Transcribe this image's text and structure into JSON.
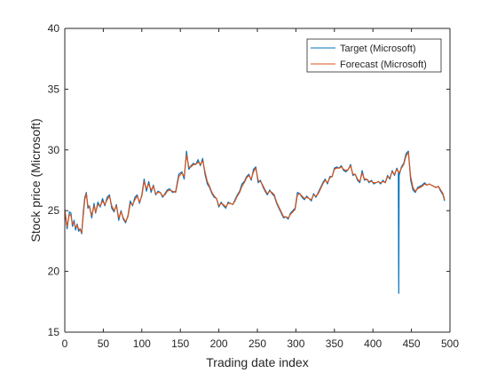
{
  "chart_data": {
    "type": "line",
    "title": "",
    "xlabel": "Trading date index",
    "ylabel": "Stock price (Microsoft)",
    "xlim": [
      0,
      500
    ],
    "ylim": [
      15,
      40
    ],
    "xticks": [
      0,
      50,
      100,
      150,
      200,
      250,
      300,
      350,
      400,
      450,
      500
    ],
    "yticks": [
      15,
      20,
      25,
      30,
      35,
      40
    ],
    "grid": false,
    "legend_position": "top-right",
    "series": [
      {
        "name": "Target (Microsoft)",
        "color": "#0072bd",
        "x": [
          0,
          3,
          6,
          8,
          10,
          12,
          14,
          16,
          18,
          20,
          22,
          24,
          26,
          28,
          30,
          32,
          35,
          38,
          40,
          43,
          46,
          49,
          52,
          55,
          58,
          61,
          64,
          67,
          70,
          73,
          76,
          79,
          82,
          85,
          88,
          91,
          94,
          97,
          100,
          103,
          106,
          109,
          112,
          115,
          118,
          121,
          124,
          127,
          130,
          133,
          136,
          140,
          144,
          148,
          152,
          155,
          158,
          161,
          164,
          167,
          170,
          173,
          176,
          179,
          182,
          185,
          188,
          191,
          194,
          197,
          200,
          203,
          206,
          209,
          212,
          215,
          218,
          221,
          224,
          227,
          230,
          233,
          236,
          239,
          242,
          245,
          248,
          251,
          254,
          257,
          260,
          263,
          266,
          269,
          272,
          275,
          278,
          281,
          284,
          287,
          290,
          293,
          296,
          299,
          302,
          305,
          308,
          311,
          314,
          317,
          320,
          323,
          326,
          329,
          332,
          335,
          338,
          341,
          344,
          347,
          350,
          353,
          356,
          359,
          362,
          365,
          368,
          371,
          374,
          377,
          380,
          383,
          386,
          389,
          392,
          395,
          398,
          401,
          404,
          407,
          410,
          413,
          416,
          419,
          422,
          425,
          428,
          431,
          433,
          433.5,
          434,
          437,
          440,
          443,
          446,
          449,
          452,
          455,
          458,
          461,
          464,
          467,
          470,
          473,
          476,
          479,
          482,
          485,
          488,
          491,
          493
        ],
        "y": [
          25.0,
          23.5,
          24.9,
          24.8,
          23.7,
          24.2,
          23.4,
          23.9,
          23.3,
          23.5,
          23.1,
          24.9,
          26.1,
          26.5,
          25.2,
          25.4,
          24.4,
          25.6,
          24.8,
          25.7,
          25.3,
          26.0,
          25.4,
          26.1,
          26.3,
          25.2,
          24.9,
          25.5,
          24.2,
          25.0,
          24.3,
          24.0,
          24.6,
          25.8,
          25.4,
          26.1,
          26.3,
          25.6,
          26.3,
          27.6,
          26.6,
          27.4,
          26.5,
          27.1,
          26.3,
          26.6,
          26.5,
          26.1,
          26.4,
          26.7,
          26.8,
          26.5,
          26.6,
          28.0,
          28.2,
          27.6,
          29.9,
          28.4,
          28.7,
          28.9,
          28.8,
          29.2,
          28.7,
          29.3,
          28.0,
          27.2,
          26.9,
          26.4,
          26.1,
          26.0,
          25.3,
          25.7,
          25.4,
          25.2,
          25.7,
          25.6,
          25.5,
          25.9,
          26.3,
          26.6,
          27.2,
          27.4,
          27.8,
          28.0,
          27.5,
          28.4,
          28.6,
          27.3,
          27.5,
          27.0,
          26.6,
          26.3,
          26.7,
          26.4,
          26.2,
          25.6,
          25.2,
          24.8,
          24.4,
          24.5,
          24.3,
          24.8,
          25.0,
          25.2,
          26.5,
          26.4,
          26.1,
          25.9,
          26.2,
          26.0,
          25.8,
          26.4,
          26.1,
          26.5,
          26.9,
          27.3,
          27.6,
          27.2,
          27.8,
          27.8,
          28.5,
          28.6,
          28.5,
          28.7,
          28.3,
          28.2,
          28.4,
          28.8,
          27.9,
          28.0,
          27.5,
          27.3,
          28.3,
          27.5,
          27.6,
          27.3,
          27.5,
          27.2,
          27.3,
          27.4,
          27.2,
          27.5,
          27.3,
          27.9,
          27.6,
          28.3,
          27.9,
          28.5,
          28.2,
          18.2,
          27.9,
          28.6,
          28.9,
          29.7,
          29.9,
          27.5,
          26.7,
          26.5,
          26.9,
          27.0,
          27.1,
          27.3,
          27.1,
          27.2,
          27.1,
          27.0,
          26.9,
          27.0,
          26.6,
          26.3,
          25.8
        ]
      },
      {
        "name": "Forecast (Microsoft)",
        "color": "#d95319",
        "x": [
          0,
          3,
          6,
          8,
          10,
          12,
          14,
          16,
          18,
          20,
          22,
          24,
          26,
          28,
          30,
          32,
          35,
          38,
          40,
          43,
          46,
          49,
          52,
          55,
          58,
          61,
          64,
          67,
          70,
          73,
          76,
          79,
          82,
          85,
          88,
          91,
          94,
          97,
          100,
          103,
          106,
          109,
          112,
          115,
          118,
          121,
          124,
          127,
          130,
          133,
          136,
          140,
          144,
          148,
          152,
          155,
          158,
          161,
          164,
          167,
          170,
          173,
          176,
          179,
          182,
          185,
          188,
          191,
          194,
          197,
          200,
          203,
          206,
          209,
          212,
          215,
          218,
          221,
          224,
          227,
          230,
          233,
          236,
          239,
          242,
          245,
          248,
          251,
          254,
          257,
          260,
          263,
          266,
          269,
          272,
          275,
          278,
          281,
          284,
          287,
          290,
          293,
          296,
          299,
          302,
          305,
          308,
          311,
          314,
          317,
          320,
          323,
          326,
          329,
          332,
          335,
          338,
          341,
          344,
          347,
          350,
          353,
          356,
          359,
          362,
          365,
          368,
          371,
          374,
          377,
          380,
          383,
          386,
          389,
          392,
          395,
          398,
          401,
          404,
          407,
          410,
          413,
          416,
          419,
          422,
          425,
          428,
          431,
          434,
          437,
          440,
          443,
          446,
          449,
          452,
          455,
          458,
          461,
          464,
          467,
          470,
          473,
          476,
          479,
          482,
          485,
          488,
          491,
          493
        ],
        "y": [
          25.1,
          23.7,
          24.7,
          24.6,
          23.9,
          24.0,
          23.6,
          23.8,
          23.5,
          23.4,
          23.2,
          24.6,
          25.9,
          26.4,
          25.4,
          25.3,
          24.6,
          25.4,
          24.9,
          25.5,
          25.4,
          25.8,
          25.5,
          25.9,
          26.2,
          25.4,
          25.0,
          25.4,
          24.4,
          24.9,
          24.4,
          24.1,
          24.5,
          25.6,
          25.5,
          25.9,
          26.2,
          25.7,
          26.2,
          27.4,
          26.8,
          27.2,
          26.7,
          27.0,
          26.4,
          26.5,
          26.5,
          26.2,
          26.3,
          26.6,
          26.7,
          26.6,
          26.5,
          27.8,
          28.1,
          27.8,
          29.6,
          28.6,
          28.6,
          28.8,
          28.8,
          29.0,
          28.8,
          29.1,
          28.2,
          27.4,
          27.0,
          26.5,
          26.2,
          26.0,
          25.4,
          25.6,
          25.5,
          25.3,
          25.6,
          25.6,
          25.5,
          25.8,
          26.2,
          26.5,
          27.0,
          27.3,
          27.7,
          27.9,
          27.6,
          28.2,
          28.5,
          27.5,
          27.4,
          27.1,
          26.7,
          26.4,
          26.6,
          26.5,
          26.3,
          25.7,
          25.3,
          24.9,
          24.5,
          24.5,
          24.4,
          24.7,
          24.9,
          25.1,
          26.3,
          26.4,
          26.2,
          26.0,
          26.1,
          26.0,
          25.9,
          26.3,
          26.2,
          26.4,
          26.8,
          27.2,
          27.5,
          27.3,
          27.7,
          27.8,
          28.4,
          28.5,
          28.5,
          28.6,
          28.4,
          28.3,
          28.4,
          28.7,
          28.0,
          28.0,
          27.6,
          27.4,
          28.1,
          27.6,
          27.6,
          27.4,
          27.4,
          27.3,
          27.3,
          27.4,
          27.3,
          27.4,
          27.3,
          27.8,
          27.7,
          28.2,
          28.0,
          28.4,
          28.1,
          28.5,
          28.8,
          29.5,
          29.8,
          27.8,
          26.9,
          26.6,
          26.8,
          26.9,
          27.0,
          27.2,
          27.1,
          27.2,
          27.1,
          27.0,
          26.9,
          27.0,
          26.7,
          26.4,
          25.9
        ]
      }
    ]
  }
}
